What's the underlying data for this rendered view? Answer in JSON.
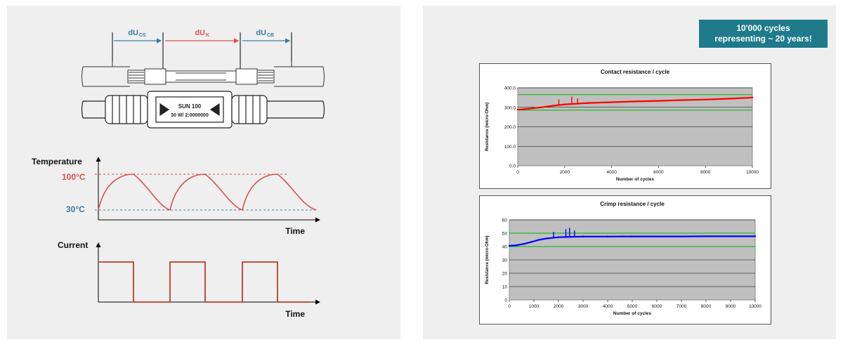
{
  "left": {
    "labels": {
      "du_cs": "dU",
      "du_cs_sub": "CS",
      "du_k": "dU",
      "du_k_sub": "K",
      "du_cb": "dU",
      "du_cb_sub": "CB"
    },
    "connector_text": [
      "SUN 100",
      "30 W/ 2:0000000"
    ],
    "temperature": {
      "title": "Temperature",
      "high": "100°C",
      "low": "30°C",
      "xlabel": "Time",
      "high_color": "#d9534f",
      "low_color": "#3a7ca5"
    },
    "current": {
      "title": "Current",
      "xlabel": "Time",
      "color": "#c0392b"
    }
  },
  "banner": {
    "line1": "10'000 cycles",
    "line2": "representing ~ 20 years!"
  },
  "chart_data": [
    {
      "type": "line",
      "title": "Contact resistance / cycle",
      "xlabel": "Number of cycles",
      "ylabel": "Resistance (micro-Ohm)",
      "xlim": [
        0,
        10000
      ],
      "ylim": [
        0,
        400
      ],
      "xticks": [
        "0",
        "2000",
        "4000",
        "6000",
        "8000",
        "10000"
      ],
      "yticks": [
        "0.0",
        "100.0",
        "200.0",
        "300.0",
        "400.0"
      ],
      "grid": true,
      "series": [
        {
          "color": "#ff0000",
          "x": [
            0,
            500,
            1000,
            1500,
            2000,
            3000,
            4000,
            5000,
            6000,
            7000,
            8000,
            9000,
            10000
          ],
          "y": [
            288,
            293,
            300,
            308,
            315,
            322,
            326,
            330,
            333,
            337,
            340,
            344,
            350
          ]
        }
      ],
      "spikes": [
        {
          "x": 1750,
          "y": 340
        },
        {
          "x": 2300,
          "y": 355
        },
        {
          "x": 2550,
          "y": 345
        }
      ],
      "limits": [
        {
          "color": "#00b000",
          "x": [
            0,
            10000
          ],
          "y": [
            365,
            365
          ]
        },
        {
          "color": "#00b000",
          "x": [
            0,
            10000
          ],
          "y": [
            285,
            285
          ]
        }
      ]
    },
    {
      "type": "line",
      "title": "Crimp resistance / cycle",
      "xlabel": "Number of cycles",
      "ylabel": "Resistance (micro-Ohm)",
      "xlim": [
        0,
        10000
      ],
      "ylim": [
        0,
        60
      ],
      "xticks": [
        "0",
        "1000",
        "2000",
        "3000",
        "4000",
        "5000",
        "6000",
        "7000",
        "8000",
        "9000",
        "10000"
      ],
      "yticks": [
        "0",
        "10",
        "20",
        "30",
        "40",
        "50",
        "60"
      ],
      "grid": true,
      "series": [
        {
          "color": "#0000ff",
          "x": [
            0,
            300,
            600,
            900,
            1200,
            1500,
            2000,
            2500,
            3000,
            4000,
            5000,
            6000,
            7000,
            8000,
            9000,
            10000
          ],
          "y": [
            40.5,
            41,
            42,
            43.5,
            45,
            46,
            47,
            47.3,
            47.5,
            47.5,
            47.6,
            47.6,
            47.6,
            47.7,
            47.7,
            47.7
          ]
        }
      ],
      "spikes": [
        {
          "x": 1800,
          "y": 51
        },
        {
          "x": 2300,
          "y": 53
        },
        {
          "x": 2450,
          "y": 54
        },
        {
          "x": 2650,
          "y": 52
        }
      ],
      "limits": [
        {
          "color": "#00b000",
          "x": [
            0,
            10000
          ],
          "y": [
            50,
            50
          ]
        },
        {
          "color": "#00b000",
          "x": [
            0,
            10000
          ],
          "y": [
            40,
            40
          ]
        }
      ]
    }
  ]
}
